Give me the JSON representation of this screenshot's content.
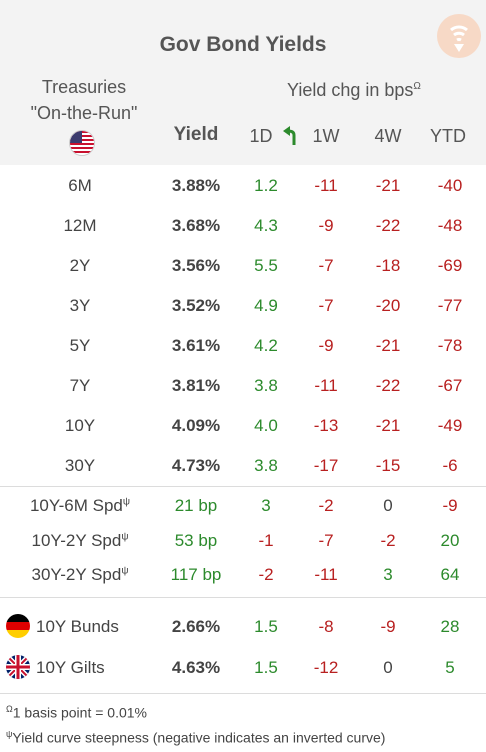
{
  "title": "Gov Bond Yields",
  "treasuries_label": "Treasuries",
  "on_the_run_label": "\"On-the-Run\"",
  "yield_chg_label": "Yield chg in bps",
  "omega_mark": "Ω",
  "psi_mark": "ψ",
  "col_yield": "Yield",
  "col_1d": "1D",
  "col_1w": "1W",
  "col_4w": "4W",
  "col_ytd": "YTD",
  "colors": {
    "positive": "#2c8a2c",
    "negative": "#b82020",
    "header_bg": "#f3f3f3",
    "logo": "#f7d9c6"
  },
  "treasuries": [
    {
      "tenor": "6M",
      "yield": "3.88%",
      "d1": "1.2",
      "w1": "-11",
      "w4": "-21",
      "ytd": "-40"
    },
    {
      "tenor": "12M",
      "yield": "3.68%",
      "d1": "4.3",
      "w1": "-9",
      "w4": "-22",
      "ytd": "-48"
    },
    {
      "tenor": "2Y",
      "yield": "3.56%",
      "d1": "5.5",
      "w1": "-7",
      "w4": "-18",
      "ytd": "-69"
    },
    {
      "tenor": "3Y",
      "yield": "3.52%",
      "d1": "4.9",
      "w1": "-7",
      "w4": "-20",
      "ytd": "-77"
    },
    {
      "tenor": "5Y",
      "yield": "3.61%",
      "d1": "4.2",
      "w1": "-9",
      "w4": "-21",
      "ytd": "-78"
    },
    {
      "tenor": "7Y",
      "yield": "3.81%",
      "d1": "3.8",
      "w1": "-11",
      "w4": "-22",
      "ytd": "-67"
    },
    {
      "tenor": "10Y",
      "yield": "4.09%",
      "d1": "4.0",
      "w1": "-13",
      "w4": "-21",
      "ytd": "-49"
    },
    {
      "tenor": "30Y",
      "yield": "4.73%",
      "d1": "3.8",
      "w1": "-17",
      "w4": "-15",
      "ytd": "-6"
    }
  ],
  "spreads": [
    {
      "label": "10Y-6M Spd",
      "value": "21 bp",
      "d1": "3",
      "w1": "-2",
      "w4": "0",
      "ytd": "-9"
    },
    {
      "label": "10Y-2Y Spd",
      "value": "53 bp",
      "d1": "-1",
      "w1": "-7",
      "w4": "-2",
      "ytd": "20"
    },
    {
      "label": "30Y-2Y Spd",
      "value": "117 bp",
      "d1": "-2",
      "w1": "-11",
      "w4": "3",
      "ytd": "64"
    }
  ],
  "foreign": [
    {
      "label": "10Y Bunds",
      "flag": "germany-flag-icon",
      "yield": "2.66%",
      "d1": "1.5",
      "w1": "-8",
      "w4": "-9",
      "ytd": "28"
    },
    {
      "label": "10Y Gilts",
      "flag": "uk-flag-icon",
      "yield": "4.63%",
      "d1": "1.5",
      "w1": "-12",
      "w4": "0",
      "ytd": "5"
    }
  ],
  "footnotes": {
    "basis_point": "1 basis point = 0.01%",
    "steepness": "Yield curve steepness (negative indicates an inverted curve)"
  }
}
